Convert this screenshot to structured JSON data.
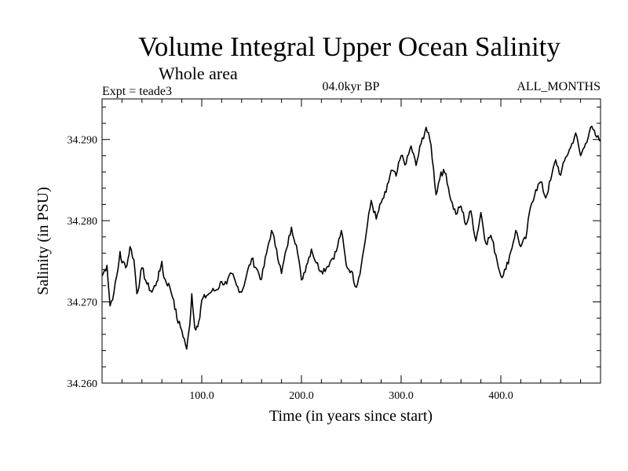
{
  "chart_data": {
    "type": "line",
    "title": "Volume Integral Upper Ocean Salinity",
    "subtitle": "Whole area",
    "experiment_label": "Expt = teade3",
    "period_label": "04.0kyr BP",
    "months_label": "ALL_MONTHS",
    "xlabel": "Time (in years since start)",
    "ylabel": "Salinity (in PSU)",
    "xlim": [
      0,
      500
    ],
    "ylim": [
      34.26,
      34.295
    ],
    "x_ticks": [
      100,
      200,
      300,
      400
    ],
    "x_tick_labels": [
      "100.0",
      "200.0",
      "300.0",
      "400.0"
    ],
    "y_ticks": [
      34.26,
      34.27,
      34.28,
      34.29
    ],
    "y_tick_labels": [
      "34.260",
      "34.270",
      "34.280",
      "34.290"
    ],
    "series": [
      {
        "name": "Volume integral upper ocean salinity",
        "x": [
          0,
          5,
          8,
          12,
          16,
          18,
          20,
          25,
          28,
          32,
          35,
          38,
          40,
          45,
          50,
          55,
          58,
          60,
          62,
          68,
          72,
          75,
          80,
          85,
          88,
          90,
          93,
          95,
          98,
          100,
          105,
          110,
          115,
          120,
          125,
          130,
          135,
          140,
          145,
          150,
          155,
          160,
          165,
          170,
          175,
          180,
          185,
          190,
          195,
          200,
          205,
          210,
          215,
          220,
          225,
          230,
          235,
          240,
          245,
          250,
          255,
          260,
          265,
          270,
          275,
          280,
          285,
          290,
          295,
          300,
          305,
          310,
          315,
          320,
          325,
          330,
          335,
          340,
          345,
          350,
          355,
          360,
          365,
          370,
          375,
          380,
          385,
          390,
          395,
          400,
          405,
          410,
          415,
          420,
          425,
          430,
          435,
          440,
          445,
          450,
          455,
          460,
          465,
          470,
          475,
          480,
          485,
          490,
          495,
          500
        ],
        "values": [
          34.2732,
          34.2745,
          34.2695,
          34.2712,
          34.274,
          34.2762,
          34.2748,
          34.2745,
          34.2768,
          34.2752,
          34.271,
          34.2728,
          34.2742,
          34.2722,
          34.2712,
          34.2725,
          34.2738,
          34.275,
          34.273,
          34.2718,
          34.2702,
          34.268,
          34.2665,
          34.2642,
          34.2672,
          34.271,
          34.2668,
          34.267,
          34.268,
          34.2702,
          34.2708,
          34.2713,
          34.2715,
          34.2725,
          34.2722,
          34.2735,
          34.272,
          34.2712,
          34.2733,
          34.2753,
          34.2741,
          34.2728,
          34.276,
          34.2788,
          34.2765,
          34.2735,
          34.2765,
          34.2792,
          34.277,
          34.2727,
          34.2745,
          34.2765,
          34.2748,
          34.2738,
          34.2742,
          34.2752,
          34.2762,
          34.2788,
          34.2745,
          34.2738,
          34.2718,
          34.2745,
          34.2785,
          34.2825,
          34.2802,
          34.2822,
          34.2835,
          34.2862,
          34.2855,
          34.288,
          34.287,
          34.2892,
          34.2868,
          34.2895,
          34.2915,
          34.2893,
          34.2832,
          34.286,
          34.2858,
          34.2825,
          34.2808,
          34.2818,
          34.2795,
          34.2812,
          34.2775,
          34.281,
          34.2772,
          34.2782,
          34.2758,
          34.2732,
          34.274,
          34.2762,
          34.2788,
          34.2768,
          34.2778,
          34.2818,
          34.2838,
          34.2848,
          34.2828,
          34.285,
          34.2875,
          34.2856,
          34.2878,
          34.289,
          34.2908,
          34.288,
          34.2895,
          34.2915,
          34.2905,
          34.2898
        ]
      }
    ]
  }
}
